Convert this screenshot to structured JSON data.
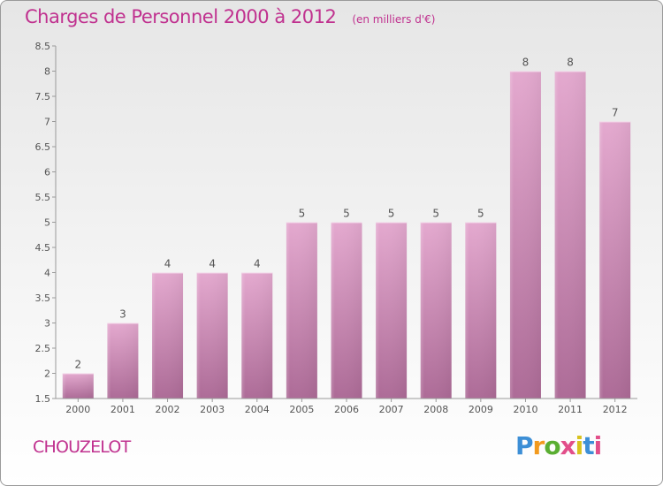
{
  "header": {
    "title": "Charges de Personnel 2000 à 2012",
    "subtitle": "(en milliers d'€)"
  },
  "footer": {
    "commune": "CHOUZELOT",
    "logo_text": "Proxiti"
  },
  "colors": {
    "title": "#c0318f",
    "bar_top": "#e4a9cf",
    "bar_bottom": "#ad6b97",
    "background_top": "#e6e6e6",
    "background_bottom": "#ffffff"
  },
  "chart_data": {
    "type": "bar",
    "categories": [
      "2000",
      "2001",
      "2002",
      "2003",
      "2004",
      "2005",
      "2006",
      "2007",
      "2008",
      "2009",
      "2010",
      "2011",
      "2012"
    ],
    "values": [
      2,
      3,
      4,
      4,
      4,
      5,
      5,
      5,
      5,
      5,
      8,
      8,
      7
    ],
    "data_labels": [
      "2",
      "3",
      "4",
      "4",
      "4",
      "5",
      "5",
      "5",
      "5",
      "5",
      "8",
      "8",
      "7"
    ],
    "ylim": [
      1.5,
      8.5
    ],
    "yticks": [
      "1.5",
      "2",
      "2.5",
      "3",
      "3.5",
      "4",
      "4.5",
      "5",
      "5.5",
      "6",
      "6.5",
      "7",
      "7.5",
      "8",
      "8.5"
    ],
    "grid": false,
    "legend": "none"
  }
}
